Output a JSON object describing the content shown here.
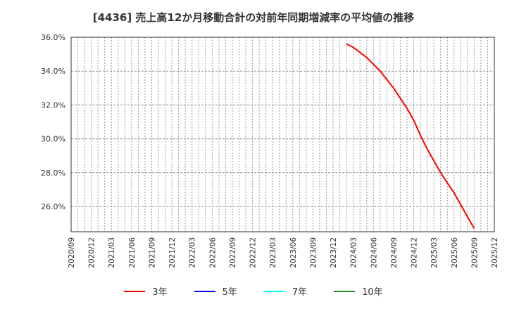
{
  "title": "[4436]  売上高12か月移動合計の対前年同期増減率の平均値の推移",
  "chart_data": {
    "type": "line",
    "title": "[4436]  売上高12か月移動合計の対前年同期増減率の平均値の推移",
    "xlabel": "",
    "ylabel": "",
    "ylim": [
      24.5,
      36.0
    ],
    "yticks": [
      "36.0%",
      "34.0%",
      "32.0%",
      "30.0%",
      "28.0%",
      "26.0%"
    ],
    "ytick_values": [
      36,
      34,
      32,
      30,
      28,
      26
    ],
    "xticks": [
      "2020/09",
      "2020/12",
      "2021/03",
      "2021/06",
      "2021/09",
      "2021/12",
      "2022/03",
      "2022/06",
      "2022/09",
      "2022/12",
      "2023/03",
      "2023/06",
      "2023/09",
      "2023/12",
      "2024/03",
      "2024/06",
      "2024/09",
      "2024/12",
      "2025/03",
      "2025/06",
      "2025/09",
      "2025/12"
    ],
    "grid": true,
    "legend_position": "bottom",
    "series": [
      {
        "name": "3年",
        "color": "#ff0000",
        "x": [
          "2024/02",
          "2024/03",
          "2024/04",
          "2024/05",
          "2024/06",
          "2024/07",
          "2024/08",
          "2024/09",
          "2024/10",
          "2024/11",
          "2024/12",
          "2025/01",
          "2025/02",
          "2025/03",
          "2025/04",
          "2025/05",
          "2025/06",
          "2025/07",
          "2025/08",
          "2025/09"
        ],
        "values": [
          35.6,
          35.4,
          35.1,
          34.8,
          34.4,
          34.0,
          33.5,
          33.0,
          32.4,
          31.8,
          31.1,
          30.2,
          29.4,
          28.7,
          28.0,
          27.4,
          26.8,
          26.1,
          25.4,
          24.7
        ]
      },
      {
        "name": "5年",
        "color": "#0000ff",
        "x": [],
        "values": []
      },
      {
        "name": "7年",
        "color": "#00ffff",
        "x": [],
        "values": []
      },
      {
        "name": "10年",
        "color": "#228b22",
        "x": [],
        "values": []
      }
    ]
  },
  "legend": [
    {
      "label": "3年",
      "color": "#ff0000"
    },
    {
      "label": "5年",
      "color": "#0000ff"
    },
    {
      "label": "7年",
      "color": "#00ffff"
    },
    {
      "label": "10年",
      "color": "#228b22"
    }
  ]
}
